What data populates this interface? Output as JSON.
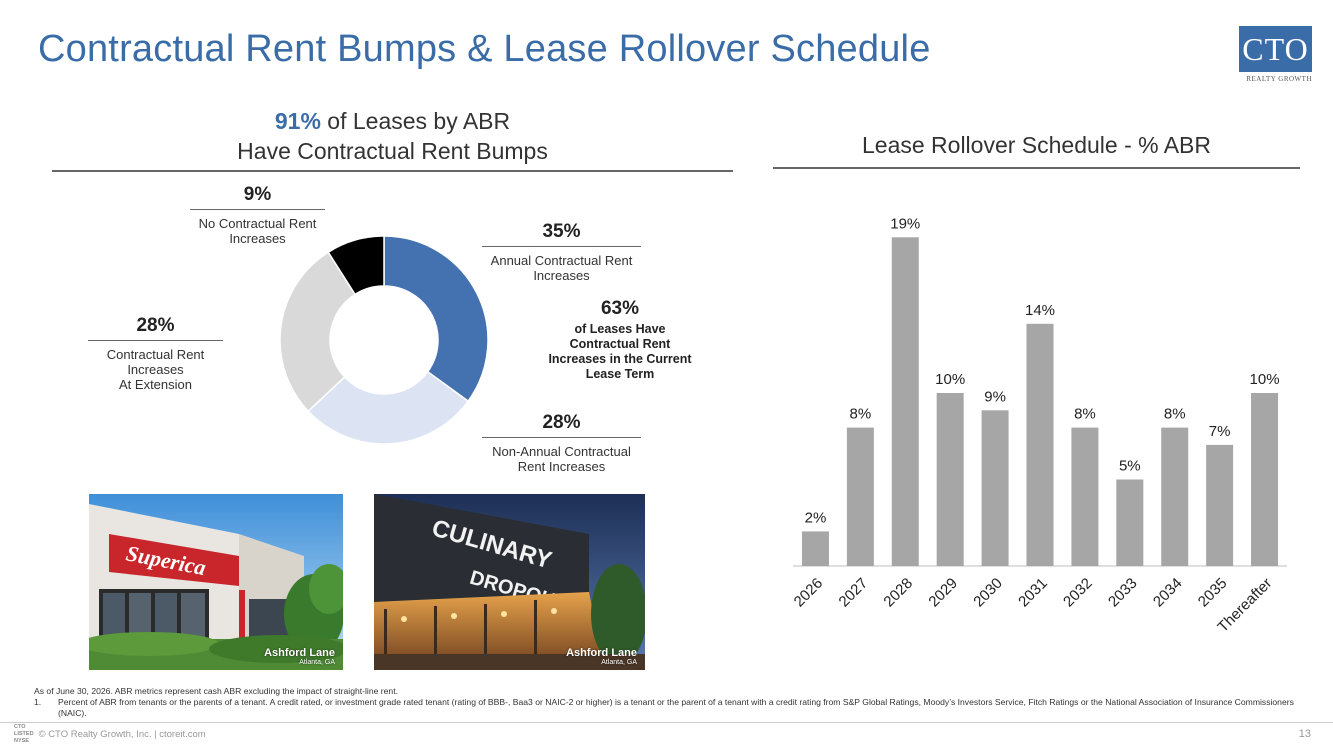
{
  "slide": {
    "title": "Contractual Rent Bumps & Lease Rollover Schedule",
    "page_number": "13"
  },
  "logo": {
    "text": "CTO",
    "subtitle": "REALTY GROWTH",
    "colors": {
      "box": "#3a6da8"
    }
  },
  "left_panel": {
    "headline_pct": "91%",
    "headline_rest": "of Leases by ABR",
    "headline_line2": "Have Contractual Rent Bumps",
    "center_note": {
      "pct": "63%",
      "text": "of Leases Have Contractual Rent Increases in the Current Lease Term"
    },
    "callouts": {
      "annual": {
        "pct": "35%",
        "label": "Annual Contractual Rent Increases"
      },
      "non_annual": {
        "pct": "28%",
        "label": "Non-Annual Contractual Rent Increases"
      },
      "extension": {
        "pct": "28%",
        "label_lines": [
          "Contractual Rent",
          "Increases",
          "At Extension"
        ]
      },
      "none": {
        "pct": "9%",
        "label_lines": [
          "No Contractual Rent",
          "Increases"
        ]
      }
    }
  },
  "photos": [
    {
      "caption": "Ashford Lane",
      "sub": "Atlanta, GA",
      "icon": "restaurant-storefront-photo"
    },
    {
      "caption": "Ashford Lane",
      "sub": "Atlanta, GA",
      "icon": "culinary-dropout-photo"
    }
  ],
  "right_panel": {
    "title": "Lease Rollover Schedule - % ABR"
  },
  "chart_data": [
    {
      "type": "pie",
      "title": "",
      "categories": [
        "Annual Contractual Rent Increases",
        "Non-Annual Contractual Rent Increases",
        "Contractual Rent Increases At Extension",
        "No Contractual Rent Increases"
      ],
      "values": [
        35,
        28,
        28,
        9
      ],
      "colors": [
        "#4472b0",
        "#dce3f2",
        "#d9d9d9",
        "#000000"
      ],
      "style": "donut"
    },
    {
      "type": "bar",
      "title": "Lease Rollover Schedule - % ABR",
      "categories": [
        "2026",
        "2027",
        "2028",
        "2029",
        "2030",
        "2031",
        "2032",
        "2033",
        "2034",
        "2035",
        "Thereafter"
      ],
      "values": [
        2,
        8,
        19,
        10,
        9,
        14,
        8,
        5,
        8,
        7,
        10
      ],
      "labels": [
        "2%",
        "8%",
        "19%",
        "10%",
        "9%",
        "14%",
        "8%",
        "5%",
        "8%",
        "7%",
        "10%"
      ],
      "xlabel": "",
      "ylabel": "",
      "ylim": [
        0,
        20
      ],
      "grid": false,
      "bar_color": "#a6a6a6"
    }
  ],
  "footnotes": {
    "intro": "As of June 30, 2026. ABR metrics represent cash ABR excluding the impact of straight-line rent.",
    "items": [
      {
        "n": "1.",
        "text": "Percent of ABR from tenants or the parents of a tenant. A credit rated, or investment grade rated tenant (rating of BBB-, Baa3 or NAIC-2 or higher) is a tenant or the parent of a tenant with a credit rating from S&P Global Ratings, Moody’s Investors Service, Fitch Ratings or the National Association of Insurance Commissioners (NAIC)."
      }
    ]
  },
  "footer": {
    "mini_logo_lines": [
      "CTO",
      "LISTED",
      "NYSE"
    ],
    "copyright": "© CTO Realty Growth, Inc. | ctoreit.com"
  }
}
